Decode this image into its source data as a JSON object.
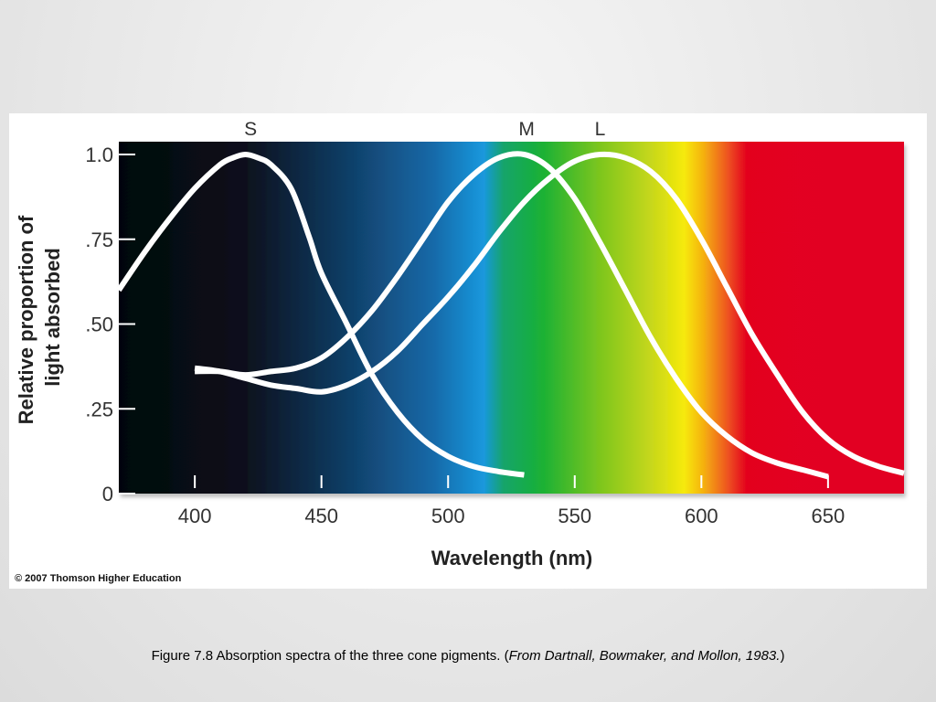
{
  "caption": {
    "main": "Figure 7.8 Absorption spectra of the three cone pigments. (",
    "citation": "From Dartnall, Bowmaker, and Mollon, 1983.",
    "closing": ")"
  },
  "copyright": "© 2007 Thomson Higher Education",
  "chart_data": {
    "type": "line",
    "xlabel": "Wavelength (nm)",
    "ylabel_lines": [
      "Relative proportion of",
      "light absorbed"
    ],
    "xlim": [
      370,
      680
    ],
    "ylim": [
      0,
      1.05
    ],
    "x_ticks": [
      400,
      450,
      500,
      550,
      600,
      650
    ],
    "y_ticks": [
      {
        "value": 0,
        "label": "0"
      },
      {
        "value": 0.25,
        "label": ".25"
      },
      {
        "value": 0.5,
        "label": ".50"
      },
      {
        "value": 0.75,
        "label": ".75"
      },
      {
        "value": 1.0,
        "label": "1.0"
      }
    ],
    "grid": false,
    "background": "visible spectrum gradient (black/violet to red)",
    "curve_color": "#ffffff",
    "series": [
      {
        "name": "S",
        "label_x": 422,
        "x": [
          370,
          380,
          390,
          400,
          410,
          415,
          420,
          425,
          430,
          438,
          445,
          450,
          460,
          470,
          480,
          490,
          500,
          510,
          520,
          530
        ],
        "y": [
          0.6,
          0.71,
          0.81,
          0.9,
          0.97,
          0.99,
          1.0,
          0.99,
          0.97,
          0.9,
          0.76,
          0.65,
          0.5,
          0.35,
          0.24,
          0.16,
          0.11,
          0.08,
          0.065,
          0.055
        ]
      },
      {
        "name": "M",
        "label_x": 531,
        "x": [
          400,
          410,
          420,
          430,
          440,
          450,
          460,
          470,
          480,
          490,
          500,
          510,
          520,
          530,
          540,
          550,
          560,
          570,
          580,
          590,
          600,
          610,
          620,
          630,
          640,
          650
        ],
        "y": [
          0.36,
          0.36,
          0.35,
          0.36,
          0.37,
          0.4,
          0.46,
          0.54,
          0.64,
          0.75,
          0.86,
          0.94,
          0.99,
          1.0,
          0.96,
          0.87,
          0.74,
          0.6,
          0.46,
          0.34,
          0.24,
          0.17,
          0.12,
          0.09,
          0.07,
          0.05
        ]
      },
      {
        "name": "L",
        "label_x": 560,
        "x": [
          400,
          410,
          420,
          430,
          440,
          450,
          460,
          470,
          480,
          490,
          500,
          510,
          520,
          530,
          540,
          550,
          560,
          570,
          580,
          590,
          600,
          610,
          620,
          630,
          640,
          650,
          660,
          670,
          680
        ],
        "y": [
          0.37,
          0.36,
          0.34,
          0.32,
          0.31,
          0.3,
          0.32,
          0.36,
          0.42,
          0.5,
          0.58,
          0.67,
          0.77,
          0.86,
          0.93,
          0.98,
          1.0,
          0.99,
          0.95,
          0.87,
          0.75,
          0.61,
          0.47,
          0.35,
          0.24,
          0.16,
          0.11,
          0.08,
          0.06
        ]
      }
    ]
  }
}
